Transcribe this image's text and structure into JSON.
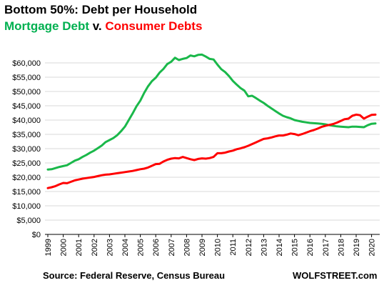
{
  "title": "Bottom 50%: Debt per Household",
  "subtitle": {
    "part1": "Mortgage Debt",
    "part2": " v. ",
    "part3": "Consumer Debts"
  },
  "source": "Source: Federal Reserve, Census Bureau",
  "brand": "WOLFSTREET.com",
  "colors": {
    "mortgage": "#1ab84a",
    "consumer": "#ff0000",
    "grid": "#d9d9d9",
    "axis": "#000000"
  },
  "chart_data": {
    "type": "line",
    "title": "Bottom 50%: Debt per Household",
    "xlabel": "",
    "ylabel": "",
    "xlim": [
      1999,
      2020.5
    ],
    "ylim": [
      0,
      65000
    ],
    "grid": "horizontal",
    "y_ticks": [
      0,
      5000,
      10000,
      15000,
      20000,
      25000,
      30000,
      35000,
      40000,
      45000,
      50000,
      55000,
      60000
    ],
    "y_tick_labels": [
      "$0",
      "$5,000",
      "$10,000",
      "$15,000",
      "$20,000",
      "$25,000",
      "$30,000",
      "$35,000",
      "$40,000",
      "$45,000",
      "$50,000",
      "$55,000",
      "$60,000"
    ],
    "x_ticks": [
      1999,
      2000,
      2001,
      2002,
      2003,
      2004,
      2005,
      2006,
      2007,
      2008,
      2009,
      2010,
      2011,
      2012,
      2013,
      2014,
      2015,
      2016,
      2017,
      2018,
      2019,
      2020
    ],
    "x_tick_labels": [
      "1999",
      "2000",
      "2001",
      "2002",
      "2003",
      "2004",
      "2005",
      "2006",
      "2007",
      "2008",
      "2009",
      "2010",
      "2011",
      "2012",
      "2013",
      "2014",
      "2015",
      "2016",
      "2017",
      "2018",
      "2019",
      "2020"
    ],
    "series": [
      {
        "name": "Mortgage Debt",
        "color": "#1ab84a",
        "points": [
          [
            1999.0,
            22700
          ],
          [
            1999.25,
            22800
          ],
          [
            1999.5,
            23200
          ],
          [
            1999.75,
            23600
          ],
          [
            2000.0,
            23900
          ],
          [
            2000.25,
            24200
          ],
          [
            2000.5,
            25000
          ],
          [
            2000.75,
            25800
          ],
          [
            2001.0,
            26300
          ],
          [
            2001.25,
            27100
          ],
          [
            2001.5,
            27800
          ],
          [
            2001.75,
            28600
          ],
          [
            2002.0,
            29300
          ],
          [
            2002.25,
            30200
          ],
          [
            2002.5,
            31100
          ],
          [
            2002.75,
            32300
          ],
          [
            2003.0,
            33000
          ],
          [
            2003.25,
            33700
          ],
          [
            2003.5,
            34700
          ],
          [
            2003.75,
            36100
          ],
          [
            2004.0,
            37700
          ],
          [
            2004.25,
            40000
          ],
          [
            2004.5,
            42300
          ],
          [
            2004.75,
            44800
          ],
          [
            2005.0,
            46800
          ],
          [
            2005.25,
            49500
          ],
          [
            2005.5,
            51800
          ],
          [
            2005.75,
            53600
          ],
          [
            2006.0,
            54800
          ],
          [
            2006.25,
            56600
          ],
          [
            2006.5,
            57900
          ],
          [
            2006.75,
            59600
          ],
          [
            2007.0,
            60400
          ],
          [
            2007.25,
            61800
          ],
          [
            2007.5,
            61000
          ],
          [
            2007.75,
            61400
          ],
          [
            2008.0,
            61700
          ],
          [
            2008.25,
            62600
          ],
          [
            2008.5,
            62300
          ],
          [
            2008.75,
            62800
          ],
          [
            2009.0,
            62900
          ],
          [
            2009.25,
            62200
          ],
          [
            2009.5,
            61400
          ],
          [
            2009.75,
            61200
          ],
          [
            2010.0,
            59400
          ],
          [
            2010.25,
            57800
          ],
          [
            2010.5,
            56800
          ],
          [
            2010.75,
            55400
          ],
          [
            2011.0,
            53700
          ],
          [
            2011.25,
            52400
          ],
          [
            2011.5,
            51200
          ],
          [
            2011.75,
            50300
          ],
          [
            2012.0,
            48300
          ],
          [
            2012.25,
            48500
          ],
          [
            2012.5,
            47700
          ],
          [
            2012.75,
            46800
          ],
          [
            2013.0,
            46000
          ],
          [
            2013.25,
            45000
          ],
          [
            2013.5,
            44100
          ],
          [
            2013.75,
            43200
          ],
          [
            2014.0,
            42300
          ],
          [
            2014.25,
            41500
          ],
          [
            2014.5,
            41000
          ],
          [
            2014.75,
            40600
          ],
          [
            2015.0,
            40000
          ],
          [
            2015.25,
            39700
          ],
          [
            2015.5,
            39400
          ],
          [
            2015.75,
            39200
          ],
          [
            2016.0,
            39000
          ],
          [
            2016.25,
            38900
          ],
          [
            2016.5,
            38800
          ],
          [
            2016.75,
            38700
          ],
          [
            2017.0,
            38500
          ],
          [
            2017.25,
            38200
          ],
          [
            2017.5,
            38000
          ],
          [
            2017.75,
            37800
          ],
          [
            2018.0,
            37700
          ],
          [
            2018.25,
            37600
          ],
          [
            2018.5,
            37500
          ],
          [
            2018.75,
            37700
          ],
          [
            2019.0,
            37700
          ],
          [
            2019.25,
            37600
          ],
          [
            2019.5,
            37500
          ],
          [
            2019.75,
            38200
          ],
          [
            2020.0,
            38700
          ],
          [
            2020.25,
            38800
          ]
        ]
      },
      {
        "name": "Consumer Debts",
        "color": "#ff0000",
        "points": [
          [
            1999.0,
            16200
          ],
          [
            1999.25,
            16500
          ],
          [
            1999.5,
            16900
          ],
          [
            1999.75,
            17500
          ],
          [
            2000.0,
            18000
          ],
          [
            2000.25,
            17900
          ],
          [
            2000.5,
            18400
          ],
          [
            2000.75,
            18900
          ],
          [
            2001.0,
            19200
          ],
          [
            2001.25,
            19500
          ],
          [
            2001.5,
            19700
          ],
          [
            2001.75,
            19900
          ],
          [
            2002.0,
            20100
          ],
          [
            2002.25,
            20400
          ],
          [
            2002.5,
            20700
          ],
          [
            2002.75,
            20900
          ],
          [
            2003.0,
            21000
          ],
          [
            2003.25,
            21200
          ],
          [
            2003.5,
            21400
          ],
          [
            2003.75,
            21600
          ],
          [
            2004.0,
            21800
          ],
          [
            2004.25,
            22000
          ],
          [
            2004.5,
            22200
          ],
          [
            2004.75,
            22500
          ],
          [
            2005.0,
            22800
          ],
          [
            2005.25,
            23000
          ],
          [
            2005.5,
            23400
          ],
          [
            2005.75,
            24000
          ],
          [
            2006.0,
            24600
          ],
          [
            2006.25,
            24700
          ],
          [
            2006.5,
            25500
          ],
          [
            2006.75,
            26100
          ],
          [
            2007.0,
            26500
          ],
          [
            2007.25,
            26700
          ],
          [
            2007.5,
            26600
          ],
          [
            2007.75,
            27100
          ],
          [
            2008.0,
            26700
          ],
          [
            2008.25,
            26300
          ],
          [
            2008.5,
            26000
          ],
          [
            2008.75,
            26400
          ],
          [
            2009.0,
            26600
          ],
          [
            2009.25,
            26500
          ],
          [
            2009.5,
            26700
          ],
          [
            2009.75,
            27100
          ],
          [
            2010.0,
            28400
          ],
          [
            2010.25,
            28400
          ],
          [
            2010.5,
            28600
          ],
          [
            2010.75,
            29000
          ],
          [
            2011.0,
            29300
          ],
          [
            2011.25,
            29800
          ],
          [
            2011.5,
            30100
          ],
          [
            2011.75,
            30500
          ],
          [
            2012.0,
            31000
          ],
          [
            2012.25,
            31600
          ],
          [
            2012.5,
            32200
          ],
          [
            2012.75,
            32800
          ],
          [
            2013.0,
            33400
          ],
          [
            2013.25,
            33600
          ],
          [
            2013.5,
            33900
          ],
          [
            2013.75,
            34300
          ],
          [
            2014.0,
            34600
          ],
          [
            2014.25,
            34600
          ],
          [
            2014.5,
            34900
          ],
          [
            2014.75,
            35300
          ],
          [
            2015.0,
            35100
          ],
          [
            2015.25,
            34700
          ],
          [
            2015.5,
            35100
          ],
          [
            2015.75,
            35600
          ],
          [
            2016.0,
            36100
          ],
          [
            2016.25,
            36500
          ],
          [
            2016.5,
            37000
          ],
          [
            2016.75,
            37600
          ],
          [
            2017.0,
            38000
          ],
          [
            2017.25,
            38300
          ],
          [
            2017.5,
            38600
          ],
          [
            2017.75,
            39100
          ],
          [
            2018.0,
            39700
          ],
          [
            2018.25,
            40300
          ],
          [
            2018.5,
            40500
          ],
          [
            2018.75,
            41500
          ],
          [
            2019.0,
            41900
          ],
          [
            2019.25,
            41700
          ],
          [
            2019.5,
            40500
          ],
          [
            2019.75,
            41200
          ],
          [
            2020.0,
            41800
          ],
          [
            2020.25,
            41900
          ]
        ]
      }
    ]
  }
}
